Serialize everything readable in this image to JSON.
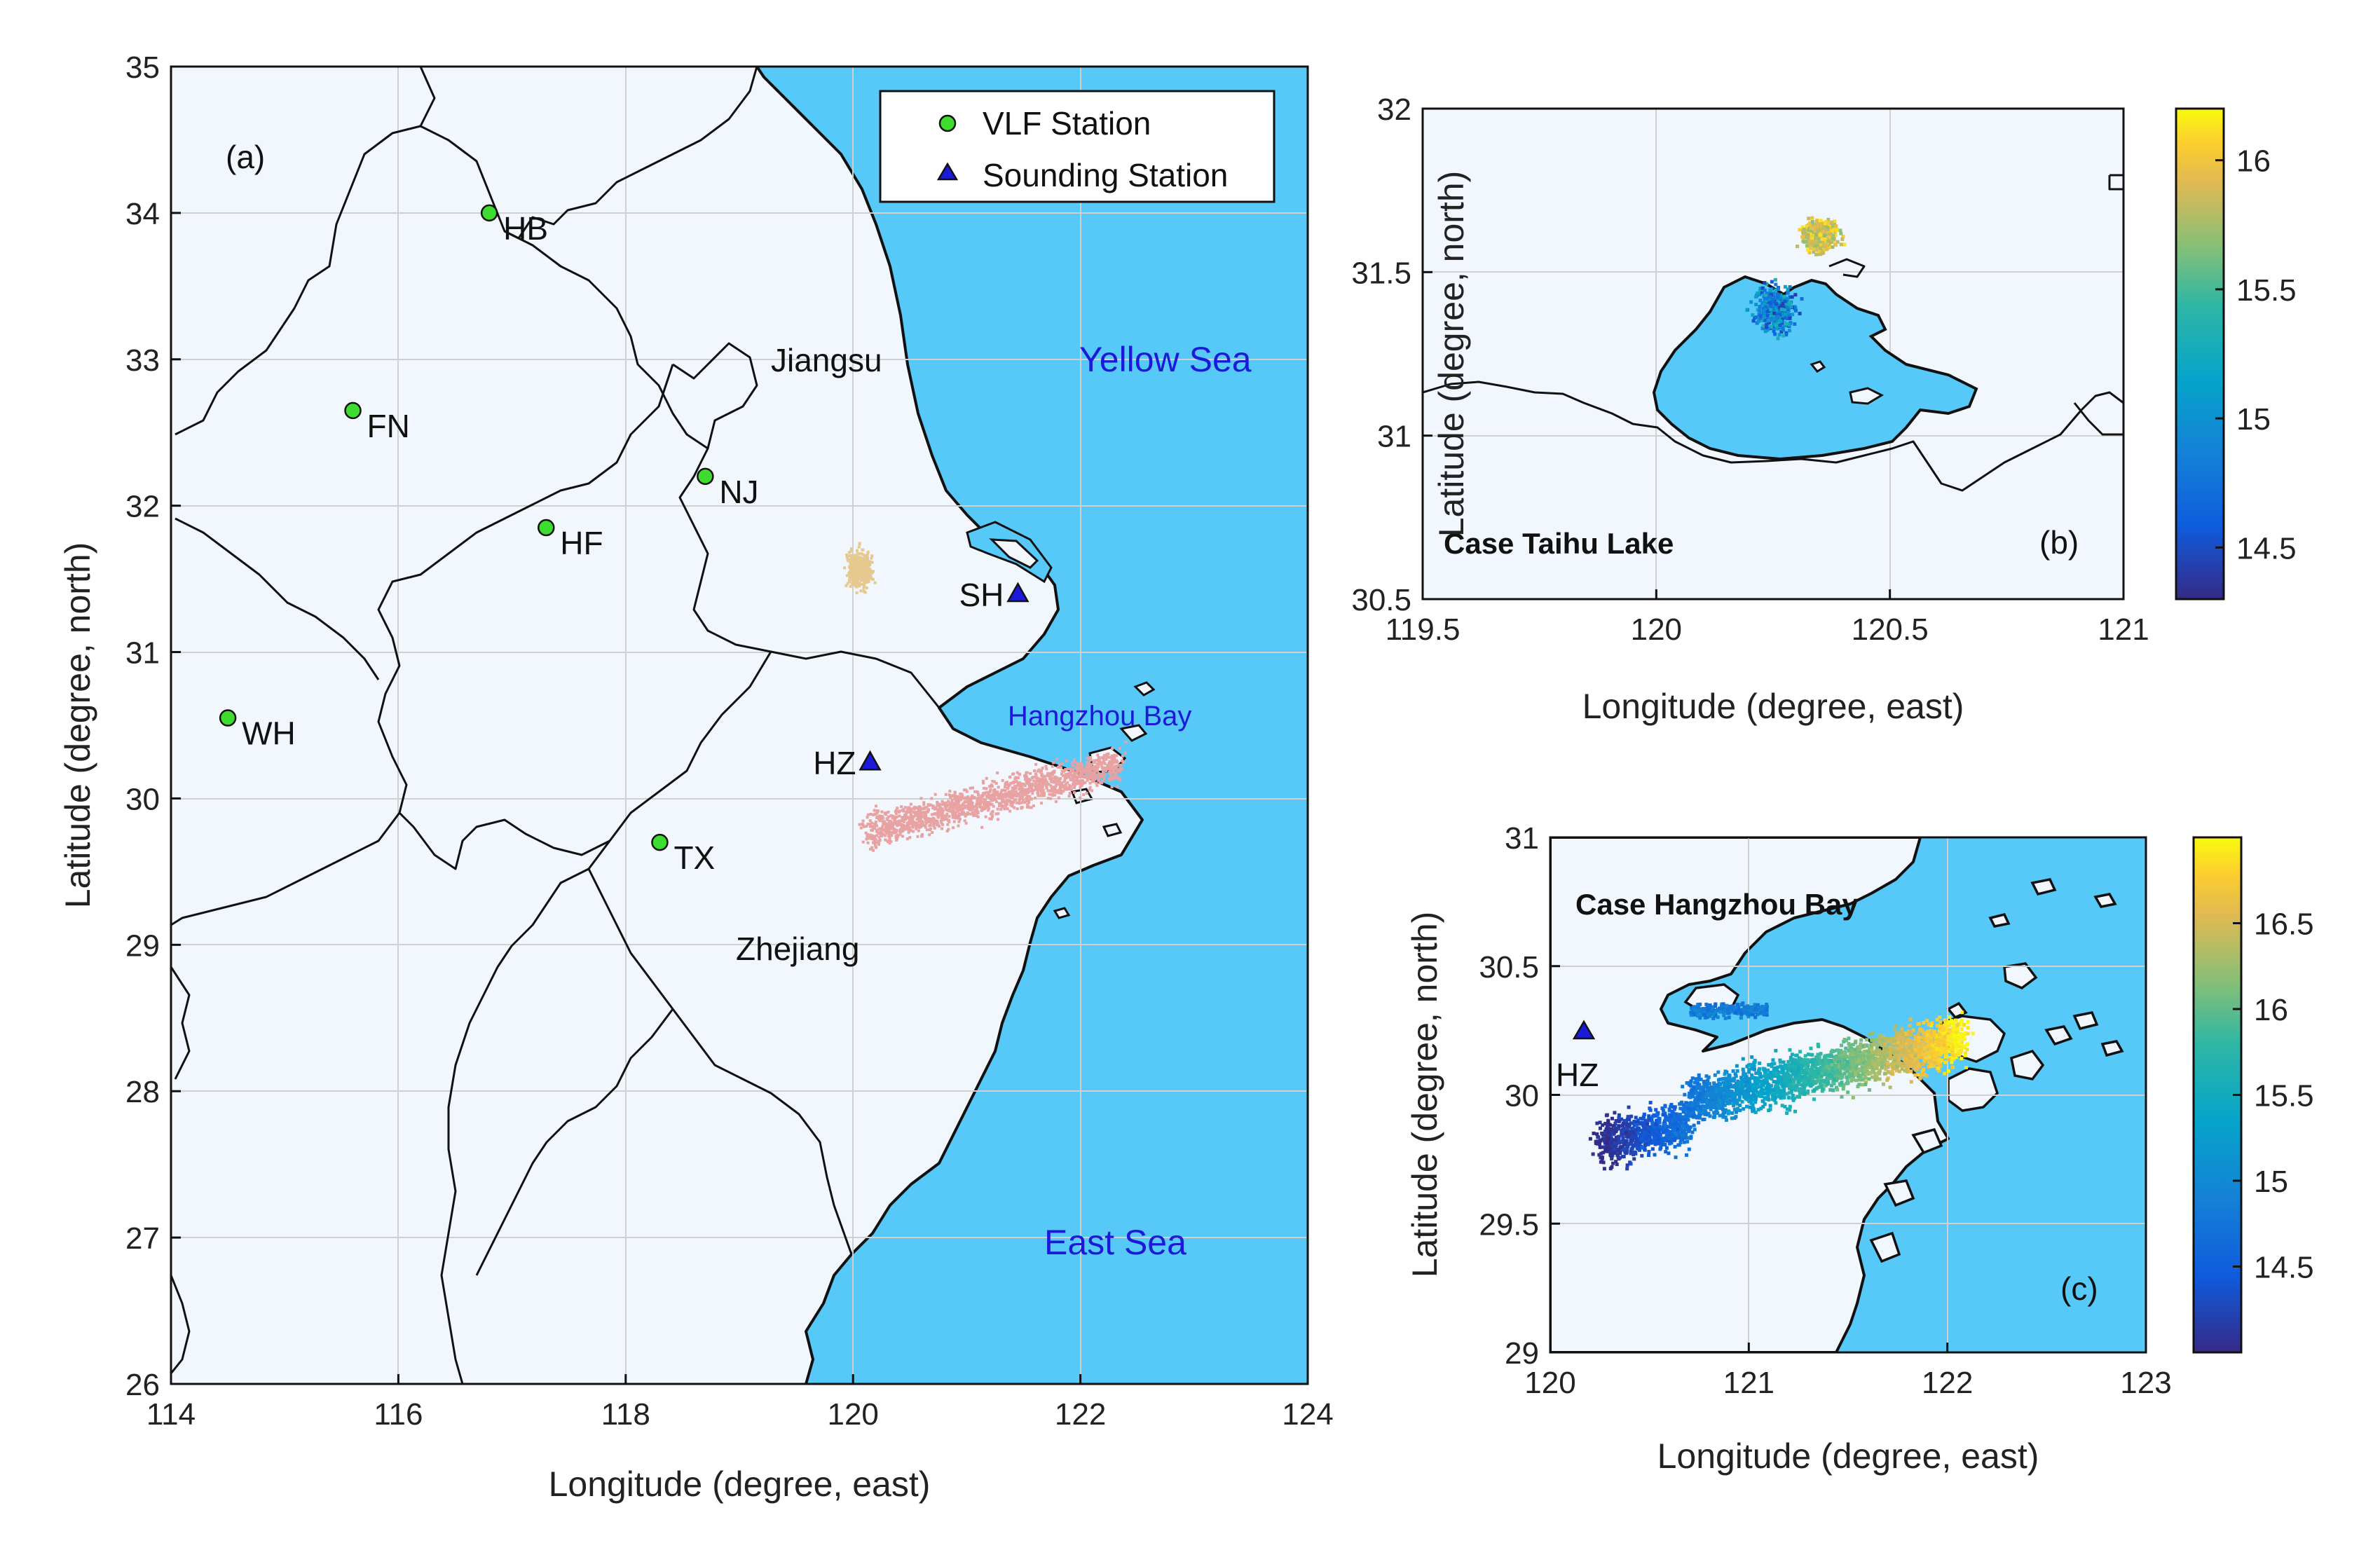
{
  "panel_a": {
    "label": "(a)",
    "xlabel": "Longitude (degree, east)",
    "ylabel": "Latitude (degree, north)",
    "xlim": [
      114,
      124
    ],
    "ylim": [
      26,
      35
    ],
    "xticks": [
      "114",
      "116",
      "118",
      "120",
      "122",
      "124"
    ],
    "yticks": [
      "26",
      "27",
      "28",
      "29",
      "30",
      "31",
      "32",
      "33",
      "34",
      "35"
    ],
    "legend": {
      "vlf": "VLF Station",
      "sounding": "Sounding Station"
    },
    "regions": {
      "jiangsu": "Jiangsu",
      "zhejiang": "Zhejiang"
    },
    "seas": {
      "yellow": "Yellow Sea",
      "east": "East Sea",
      "bay": "Hangzhou Bay"
    },
    "vlf_stations": [
      {
        "name": "HB",
        "lon": 116.8,
        "lat": 34.0
      },
      {
        "name": "FN",
        "lon": 115.6,
        "lat": 32.65
      },
      {
        "name": "NJ",
        "lon": 118.7,
        "lat": 32.2
      },
      {
        "name": "HF",
        "lon": 117.3,
        "lat": 31.85
      },
      {
        "name": "WH",
        "lon": 114.5,
        "lat": 30.55
      },
      {
        "name": "TX",
        "lon": 118.3,
        "lat": 29.7
      }
    ],
    "sounding_stations": [
      {
        "name": "SH",
        "lon": 121.45,
        "lat": 31.4
      },
      {
        "name": "HZ",
        "lon": 120.15,
        "lat": 30.25
      }
    ]
  },
  "panel_b": {
    "label": "(b)",
    "case": "Case Taihu Lake",
    "xlabel": "Longitude (degree, east)",
    "ylabel": "Latitude (degree, north)",
    "xlim": [
      119.5,
      121
    ],
    "ylim": [
      30.5,
      32
    ],
    "xticks": [
      "119.5",
      "120",
      "120.5",
      "121"
    ],
    "yticks": [
      "30.5",
      "31",
      "31.5",
      "32"
    ],
    "colorbar_ticks": [
      "14.5",
      "15",
      "15.5",
      "16"
    ]
  },
  "panel_c": {
    "label": "(c)",
    "case": "Case Hangzhou Bay",
    "station": "HZ",
    "xlabel": "Longitude (degree, east)",
    "ylabel": "Latitude (degree, north)",
    "xlim": [
      120,
      123
    ],
    "ylim": [
      29,
      31
    ],
    "xticks": [
      "120",
      "121",
      "122",
      "123"
    ],
    "yticks": [
      "29",
      "29.5",
      "30",
      "30.5",
      "31"
    ],
    "colorbar_ticks": [
      "14.5",
      "15",
      "15.5",
      "16",
      "16.5"
    ]
  },
  "colors": {
    "sea": "#57c9f8",
    "land": "#f2f6fd",
    "vlf": "#3ddc2e",
    "sounding": "#1a1ad8",
    "sea_text": "#1a1ad8",
    "taihu_cluster": "#e6c98f",
    "hangzhou_cluster": "#e8a2a2"
  },
  "chart_data": [
    {
      "type": "scatter",
      "panel": "a",
      "series": [
        {
          "name": "VLF Station",
          "points": [
            [
              116.8,
              34.0
            ],
            [
              115.6,
              32.65
            ],
            [
              118.7,
              32.2
            ],
            [
              117.3,
              31.85
            ],
            [
              114.5,
              30.55
            ],
            [
              118.3,
              29.7
            ]
          ]
        },
        {
          "name": "Sounding Station",
          "points": [
            [
              121.45,
              31.4
            ],
            [
              120.15,
              30.25
            ]
          ]
        }
      ]
    },
    {
      "type": "scatter",
      "panel": "b",
      "colorbar_range": [
        14.3,
        16.2
      ]
    },
    {
      "type": "scatter",
      "panel": "c",
      "colorbar_range": [
        14.0,
        17.0
      ]
    }
  ]
}
